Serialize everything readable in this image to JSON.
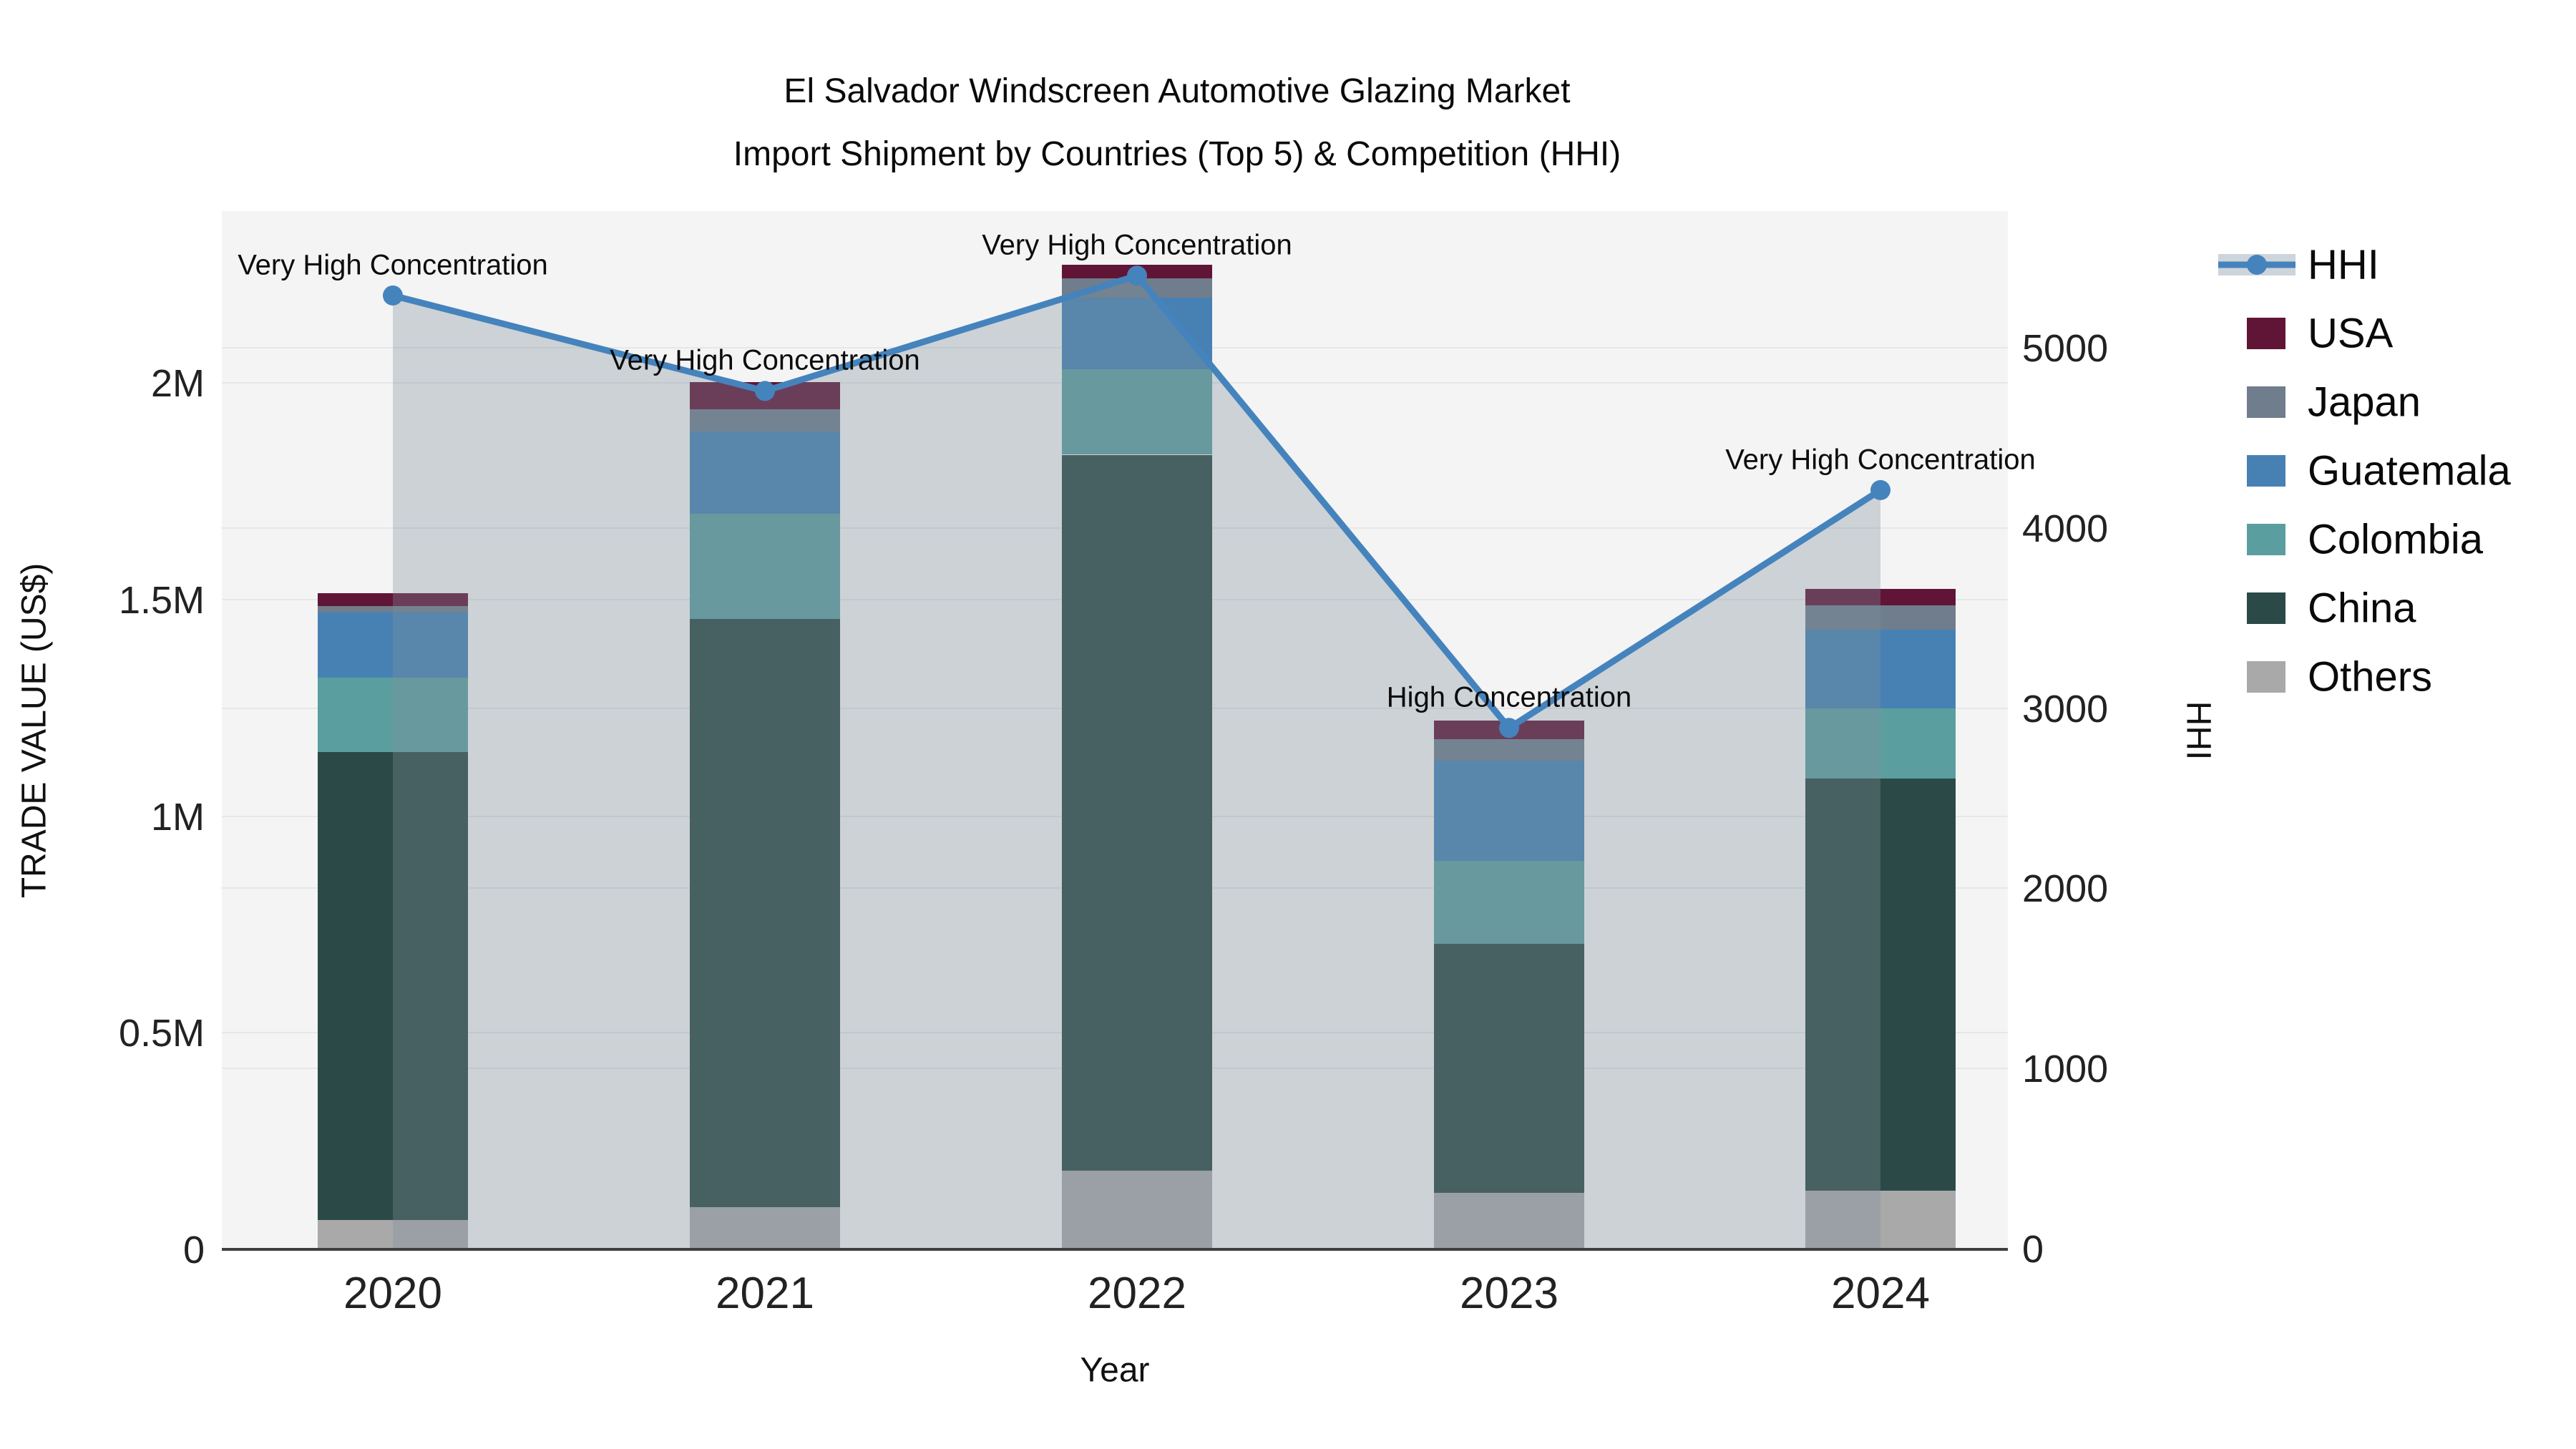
{
  "title": {
    "line1": "El Salvador Windscreen Automotive Glazing Market",
    "line2": "Import Shipment by Countries (Top 5) & Competition (HHI)"
  },
  "axes": {
    "left": {
      "title": "TRADE VALUE (US$)",
      "ticks": [
        {
          "label": "0",
          "value": 0
        },
        {
          "label": "0.5M",
          "value": 500000
        },
        {
          "label": "1M",
          "value": 1000000
        },
        {
          "label": "1.5M",
          "value": 1500000
        },
        {
          "label": "2M",
          "value": 2000000
        }
      ]
    },
    "right": {
      "title": "HHI",
      "ticks": [
        {
          "label": "0",
          "value": 0
        },
        {
          "label": "1000",
          "value": 1000
        },
        {
          "label": "2000",
          "value": 2000
        },
        {
          "label": "3000",
          "value": 3000
        },
        {
          "label": "4000",
          "value": 4000
        },
        {
          "label": "5000",
          "value": 5000
        }
      ]
    },
    "x": {
      "title": "Year"
    }
  },
  "colors": {
    "background": "#f4f4f4",
    "gridline": "#e6e7e9",
    "baseline": "#3f3f3f",
    "hhi_line": "#4583bd",
    "hhi_area": "rgba(127,144,155,0.34)",
    "legend_area_band": "#cdd4db"
  },
  "chart_data": {
    "type": "bar+line",
    "title": "El Salvador Windscreen Automotive Glazing Market Import Shipment by Countries (Top 5) & Competition (HHI)",
    "xlabel": "Year",
    "ylabel_left": "TRADE VALUE (US$)",
    "ylabel_right": "HHI",
    "ylim_left": [
      0,
      2400000
    ],
    "ylim_right": [
      0,
      5760
    ],
    "grid": true,
    "legend_position": "right",
    "categories": [
      "2020",
      "2021",
      "2022",
      "2023",
      "2024"
    ],
    "stack_order_bottom_to_top": [
      "Others",
      "China",
      "Colombia",
      "Guatemala",
      "Japan",
      "USA"
    ],
    "series": [
      {
        "name": "USA",
        "color": "#601537",
        "values": [
          30000,
          63000,
          31000,
          43000,
          38000
        ]
      },
      {
        "name": "Japan",
        "color": "#6f7d8c",
        "values": [
          15000,
          51000,
          45000,
          50000,
          55000
        ]
      },
      {
        "name": "Guatemala",
        "color": "#4781b4",
        "values": [
          150000,
          190000,
          164000,
          231000,
          182000
        ]
      },
      {
        "name": "Colombia",
        "color": "#5b9ea0",
        "values": [
          172000,
          243000,
          198000,
          192000,
          163000
        ]
      },
      {
        "name": "China",
        "color": "#2b4a47",
        "values": [
          1080000,
          1358000,
          1652000,
          575000,
          951000
        ]
      },
      {
        "name": "Others",
        "color": "#a9a9aa",
        "values": [
          68000,
          97000,
          182000,
          130000,
          135000
        ]
      }
    ],
    "totals": [
      1515000,
      2002000,
      2272000,
      1221000,
      1524000
    ],
    "line": {
      "name": "HHI",
      "values": [
        5290,
        4760,
        5400,
        2890,
        4210
      ]
    },
    "annotations": [
      {
        "year": "2020",
        "text": "Very High Concentration"
      },
      {
        "year": "2021",
        "text": "Very High Concentration"
      },
      {
        "year": "2022",
        "text": "Very High Concentration"
      },
      {
        "year": "2023",
        "text": "High Concentration"
      },
      {
        "year": "2024",
        "text": "Very High Concentration"
      }
    ],
    "legend": [
      "HHI",
      "USA",
      "Japan",
      "Guatemala",
      "Colombia",
      "China",
      "Others"
    ]
  }
}
